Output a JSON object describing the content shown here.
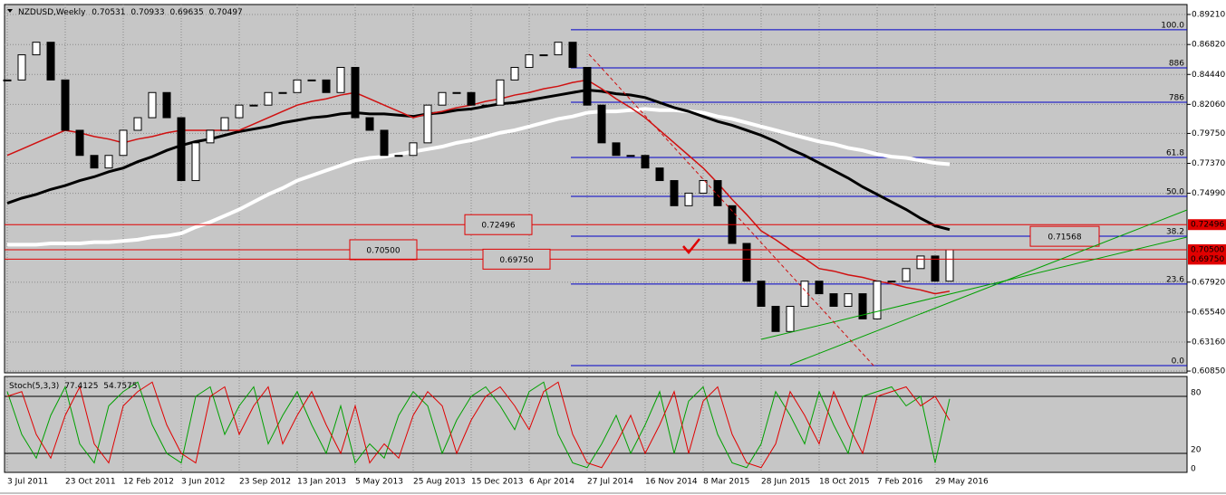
{
  "chart_data": [
    {
      "type": "candlestick",
      "title": "NZDUSD,Weekly",
      "ohlc": [
        0.70531,
        0.70933,
        0.69635,
        0.70497
      ],
      "categories": [
        "3 Jul 2011",
        null,
        null,
        null,
        "23 Oct 2011",
        null,
        null,
        null,
        "12 Feb 2012",
        null,
        null,
        null,
        "3 Jun 2012",
        null,
        null,
        null,
        "23 Sep 2012",
        null,
        null,
        null,
        "13 Jan 2013",
        null,
        null,
        null,
        "5 May 2013",
        null,
        null,
        null,
        "25 Aug 2013",
        null,
        null,
        null,
        "15 Dec 2013",
        null,
        null,
        null,
        "6 Apr 2014",
        null,
        null,
        null,
        "27 Jul 2014",
        null,
        null,
        null,
        "16 Nov 2014",
        null,
        null,
        null,
        "8 Mar 2015",
        null,
        null,
        null,
        "28 Jun 2015",
        null,
        null,
        null,
        "18 Oct 2015",
        null,
        null,
        null,
        "7 Feb 2016",
        null,
        null,
        null,
        "29 May 2016",
        null
      ],
      "values": [
        0.84,
        0.86,
        0.87,
        0.84,
        0.8,
        0.78,
        0.77,
        0.78,
        0.8,
        0.81,
        0.83,
        0.81,
        0.76,
        0.79,
        0.8,
        0.81,
        0.82,
        0.82,
        0.83,
        0.83,
        0.84,
        0.84,
        0.83,
        0.85,
        0.81,
        0.8,
        0.78,
        0.78,
        0.79,
        0.82,
        0.83,
        0.83,
        0.82,
        0.82,
        0.84,
        0.85,
        0.86,
        0.86,
        0.87,
        0.85,
        0.82,
        0.79,
        0.78,
        0.78,
        0.77,
        0.76,
        0.74,
        0.75,
        0.76,
        0.74,
        0.71,
        0.68,
        0.66,
        0.64,
        0.66,
        0.68,
        0.67,
        0.66,
        0.67,
        0.65,
        0.68,
        0.68,
        0.69,
        0.7,
        0.68,
        0.70497
      ],
      "series": [
        {
          "color": "#ffffff",
          "values": [
            0.709,
            0.709,
            0.709,
            0.71,
            0.71,
            0.71,
            0.711,
            0.711,
            0.712,
            0.713,
            0.715,
            0.716,
            0.718,
            0.723,
            0.727,
            0.732,
            0.737,
            0.743,
            0.749,
            0.754,
            0.76,
            0.764,
            0.768,
            0.772,
            0.776,
            0.778,
            0.779,
            0.781,
            0.783,
            0.785,
            0.787,
            0.79,
            0.792,
            0.795,
            0.798,
            0.8,
            0.803,
            0.806,
            0.809,
            0.811,
            0.814,
            0.815,
            0.815,
            0.816,
            0.817,
            0.816,
            0.816,
            0.815,
            0.814,
            0.811,
            0.809,
            0.806,
            0.803,
            0.8,
            0.797,
            0.794,
            0.791,
            0.789,
            0.786,
            0.784,
            0.781,
            0.779,
            0.778,
            0.776,
            0.774,
            0.773
          ]
        },
        {
          "color": "#000000",
          "values": [
            0.742,
            0.746,
            0.749,
            0.753,
            0.756,
            0.76,
            0.763,
            0.767,
            0.77,
            0.775,
            0.779,
            0.784,
            0.788,
            0.791,
            0.793,
            0.796,
            0.799,
            0.801,
            0.803,
            0.806,
            0.808,
            0.81,
            0.811,
            0.813,
            0.814,
            0.813,
            0.813,
            0.812,
            0.811,
            0.813,
            0.814,
            0.816,
            0.817,
            0.819,
            0.821,
            0.822,
            0.824,
            0.826,
            0.828,
            0.83,
            0.832,
            0.831,
            0.829,
            0.828,
            0.826,
            0.822,
            0.818,
            0.815,
            0.811,
            0.807,
            0.804,
            0.8,
            0.796,
            0.791,
            0.785,
            0.78,
            0.774,
            0.768,
            0.762,
            0.755,
            0.749,
            0.743,
            0.737,
            0.73,
            0.724,
            0.721
          ]
        },
        {
          "color": "#d01010",
          "values": [
            0.78,
            0.785,
            0.79,
            0.795,
            0.8,
            0.798,
            0.795,
            0.793,
            0.79,
            0.793,
            0.795,
            0.798,
            0.8,
            0.8,
            0.8,
            0.8,
            0.8,
            0.805,
            0.81,
            0.815,
            0.82,
            0.823,
            0.825,
            0.828,
            0.83,
            0.825,
            0.82,
            0.815,
            0.81,
            0.813,
            0.815,
            0.818,
            0.82,
            0.823,
            0.825,
            0.828,
            0.83,
            0.833,
            0.835,
            0.838,
            0.84,
            0.833,
            0.825,
            0.818,
            0.81,
            0.8,
            0.79,
            0.78,
            0.77,
            0.758,
            0.745,
            0.733,
            0.72,
            0.713,
            0.705,
            0.698,
            0.69,
            0.688,
            0.685,
            0.683,
            0.68,
            0.678,
            0.675,
            0.673,
            0.67,
            0.672
          ]
        }
      ],
      "ylim": [
        0.6071,
        0.9
      ],
      "yticks": [
        {
          "value": 0.8921,
          "label": "0.89210"
        },
        {
          "value": 0.8682,
          "label": "0.86820"
        },
        {
          "value": 0.8444,
          "label": "0.84440"
        },
        {
          "value": 0.8206,
          "label": "0.82060"
        },
        {
          "value": 0.7975,
          "label": "0.79750"
        },
        {
          "value": 0.7737,
          "label": "0.77370"
        },
        {
          "value": 0.7499,
          "label": "0.74990"
        },
        {
          "value": 0.6792,
          "label": "0.67920"
        },
        {
          "value": 0.6554,
          "label": "0.65540"
        },
        {
          "value": 0.6316,
          "label": "0.63160"
        },
        {
          "value": 0.6085,
          "label": "0.60850"
        }
      ],
      "levels": [
        {
          "value": 0.72496,
          "label": "0.72496"
        },
        {
          "value": 0.705,
          "label": "0.70500"
        },
        {
          "value": 0.6975,
          "label": "0.69750"
        }
      ],
      "annotation_value": 0.71568,
      "fib_levels": [
        {
          "value": 0.8799,
          "label": "100.0"
        },
        {
          "value": 0.8496,
          "label": "886"
        },
        {
          "value": 0.8223,
          "label": "786"
        },
        {
          "value": 0.7784,
          "label": "61.8"
        },
        {
          "value": 0.7474,
          "label": "50.0"
        },
        {
          "value": 0.7158,
          "label": "38.2"
        },
        {
          "value": 0.6777,
          "label": "23.6"
        },
        {
          "value": 0.6129,
          "label": "0.0"
        }
      ],
      "grid": true
    },
    {
      "type": "line",
      "title": "Stoch(5,3,3)",
      "header_values": [
        77.4125,
        54.7575
      ],
      "series": [
        {
          "color": "#00a000",
          "values": [
            85,
            40,
            15,
            60,
            90,
            30,
            10,
            70,
            85,
            95,
            50,
            20,
            10,
            80,
            90,
            40,
            70,
            90,
            30,
            60,
            85,
            50,
            20,
            70,
            10,
            30,
            15,
            60,
            85,
            70,
            20,
            55,
            80,
            90,
            70,
            45,
            85,
            95,
            40,
            10,
            5,
            30,
            60,
            20,
            50,
            85,
            20,
            75,
            90,
            40,
            10,
            5,
            30,
            85,
            60,
            30,
            85,
            50,
            20,
            80,
            85,
            90,
            70,
            80,
            10,
            77.4125
          ]
        },
        {
          "color": "#e00000",
          "values": [
            80,
            85,
            40,
            15,
            60,
            90,
            30,
            10,
            70,
            85,
            95,
            50,
            20,
            10,
            80,
            90,
            40,
            70,
            90,
            30,
            60,
            85,
            50,
            20,
            70,
            10,
            30,
            15,
            60,
            85,
            70,
            20,
            55,
            80,
            90,
            70,
            45,
            85,
            95,
            40,
            10,
            5,
            30,
            60,
            20,
            50,
            85,
            20,
            75,
            90,
            40,
            10,
            5,
            30,
            85,
            60,
            30,
            85,
            50,
            20,
            80,
            85,
            90,
            70,
            80,
            54.7575
          ]
        }
      ],
      "ylim": [
        0,
        100
      ],
      "yticks": [
        0,
        20,
        80
      ]
    }
  ]
}
